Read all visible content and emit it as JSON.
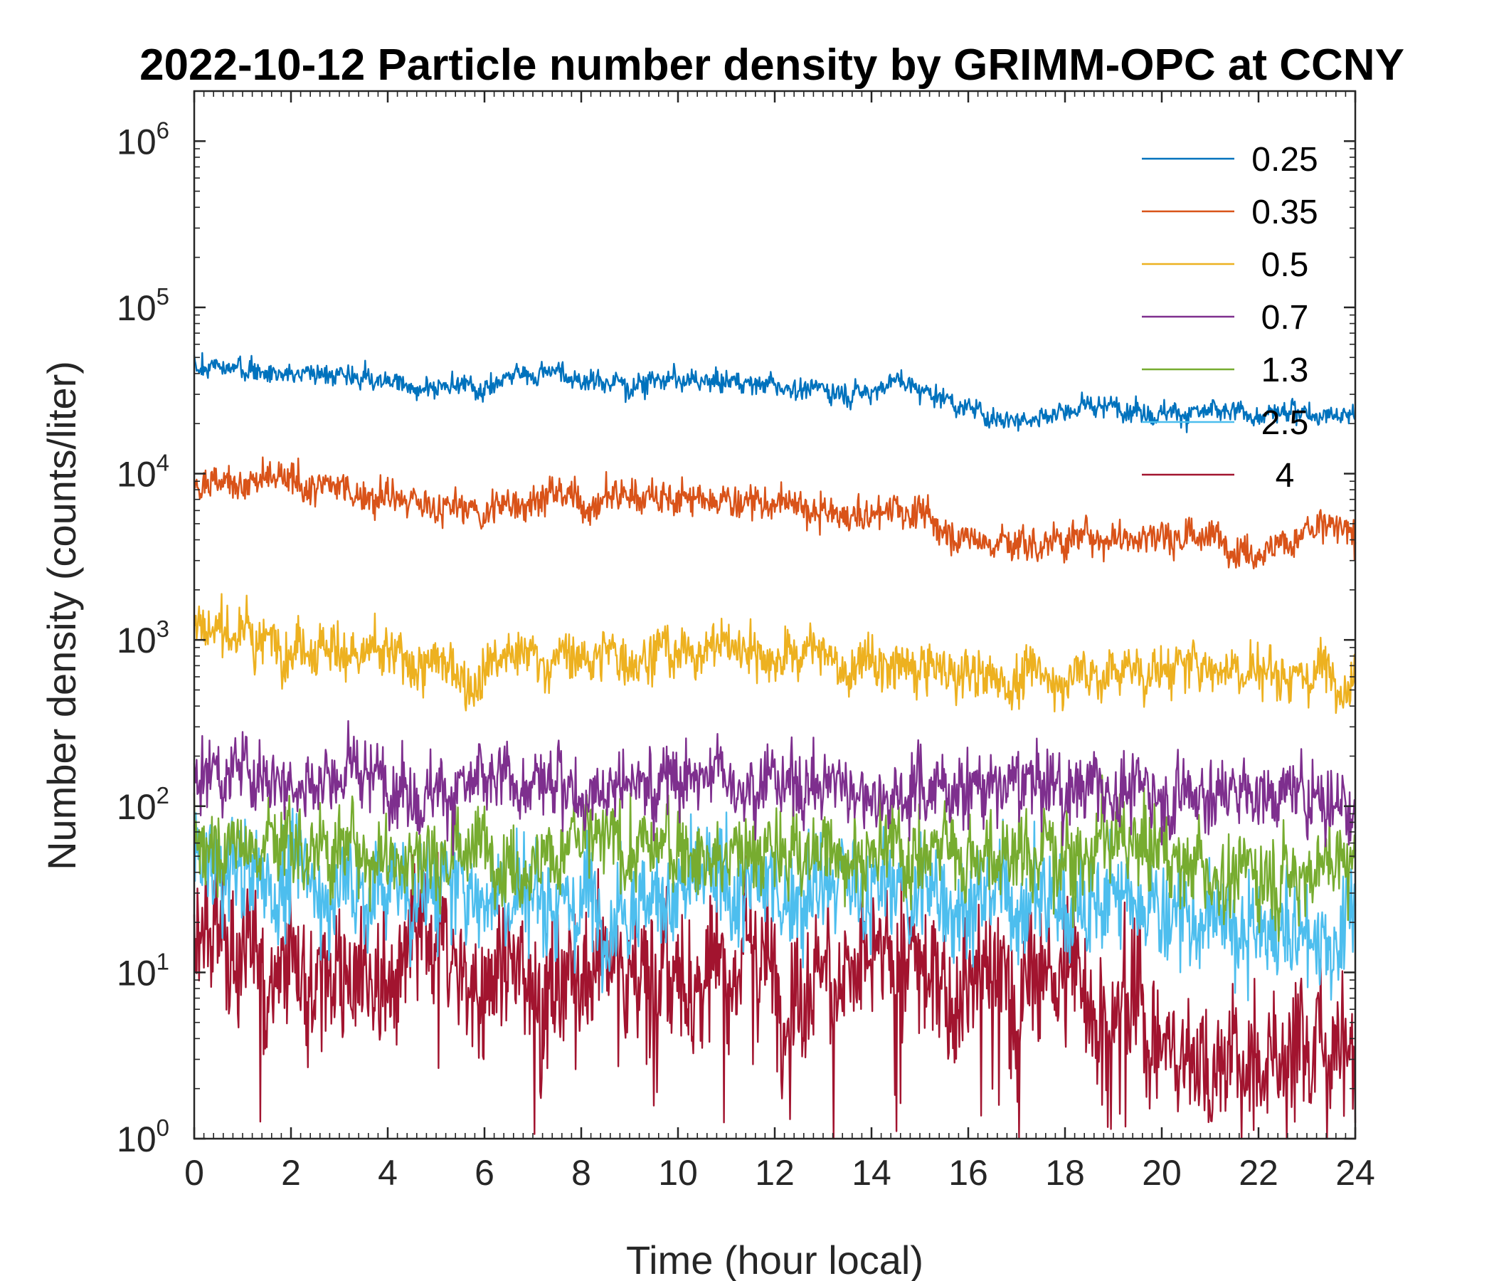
{
  "chart_data": {
    "type": "line",
    "title": "2022-10-12 Particle number density by GRIMM-OPC at CCNY",
    "xlabel": "Time (hour local)",
    "ylabel": "Number density (counts/liter)",
    "xlim": [
      0,
      24
    ],
    "ylim": [
      1,
      2000000
    ],
    "yscale": "log",
    "x_ticks": [
      "0",
      "2",
      "4",
      "6",
      "8",
      "10",
      "12",
      "14",
      "16",
      "18",
      "20",
      "22",
      "24"
    ],
    "y_ticks": [
      {
        "base": "10",
        "exp": "0"
      },
      {
        "base": "10",
        "exp": "1"
      },
      {
        "base": "10",
        "exp": "2"
      },
      {
        "base": "10",
        "exp": "3"
      },
      {
        "base": "10",
        "exp": "4"
      },
      {
        "base": "10",
        "exp": "5"
      },
      {
        "base": "10",
        "exp": "6"
      }
    ],
    "legend_position": "top-right",
    "series": [
      {
        "name": "0.25",
        "color": "#0072BD",
        "noise": 0.03,
        "x": [
          0,
          0.1,
          1,
          2,
          3,
          4,
          4.5,
          5,
          5.5,
          6,
          6.5,
          7,
          7.4,
          8,
          8.5,
          9,
          9.5,
          10,
          11,
          11.5,
          12,
          13,
          13.5,
          14,
          14.5,
          15,
          15.5,
          16,
          16.5,
          17,
          18,
          19,
          20,
          21,
          22,
          22.5,
          23,
          24
        ],
        "y": [
          52000,
          44000,
          42000,
          41000,
          39000,
          36000,
          33000,
          34000,
          33000,
          33000,
          38000,
          40000,
          44000,
          36000,
          37000,
          33000,
          39000,
          35000,
          36000,
          36000,
          34000,
          32000,
          31000,
          32000,
          37000,
          32000,
          29000,
          25000,
          22000,
          22000,
          24000,
          25000,
          24000,
          23000,
          22000,
          23000,
          24000,
          23000
        ]
      },
      {
        "name": "0.35",
        "color": "#D95319",
        "noise": 0.05,
        "x": [
          0,
          1,
          2,
          3,
          4,
          4.7,
          5,
          6,
          7,
          7.4,
          8,
          8.7,
          9.5,
          10,
          11,
          11.5,
          12,
          13,
          13.5,
          14,
          14.5,
          15,
          15.5,
          16,
          17,
          18,
          19,
          20,
          21,
          21.5,
          22,
          23,
          23.5,
          24
        ],
        "y": [
          9800,
          8800,
          8600,
          8000,
          7200,
          6100,
          6300,
          5800,
          7200,
          7800,
          6400,
          7500,
          7800,
          6800,
          7000,
          6800,
          6500,
          5700,
          5400,
          5500,
          6800,
          5400,
          4600,
          4200,
          3700,
          4100,
          4300,
          4400,
          4000,
          3700,
          3700,
          4200,
          4600,
          3900
        ]
      },
      {
        "name": "0.5",
        "color": "#EDB120",
        "noise": 0.07,
        "x": [
          0,
          1,
          2,
          3,
          4,
          4.6,
          5,
          5.7,
          6,
          7,
          8,
          9,
          9.5,
          10,
          11,
          11.5,
          12,
          12.5,
          13,
          13.5,
          14,
          15,
          16,
          17,
          18,
          19,
          20,
          21,
          22,
          23,
          23.5,
          24
        ],
        "y": [
          1200,
          1100,
          1000,
          900,
          750,
          680,
          700,
          600,
          720,
          800,
          770,
          850,
          900,
          820,
          980,
          900,
          800,
          780,
          900,
          620,
          700,
          640,
          600,
          580,
          620,
          650,
          650,
          700,
          650,
          650,
          720,
          580
        ]
      },
      {
        "name": "0.7",
        "color": "#7E2F8E",
        "noise": 0.1,
        "x": [
          0,
          2,
          4,
          6,
          8,
          10,
          11,
          12,
          14,
          16,
          18,
          20,
          22,
          24
        ],
        "y": [
          180,
          160,
          140,
          125,
          135,
          150,
          160,
          140,
          125,
          130,
          130,
          125,
          120,
          110
        ]
      },
      {
        "name": "1.3",
        "color": "#77AC30",
        "noise": 0.12,
        "x": [
          0,
          2,
          4,
          6,
          8,
          10,
          12,
          14,
          16,
          18,
          20,
          21,
          22,
          24
        ],
        "y": [
          65,
          60,
          55,
          52,
          55,
          55,
          52,
          52,
          55,
          55,
          58,
          40,
          40,
          48
        ]
      },
      {
        "name": "2.5",
        "color": "#4DBEEE",
        "noise": 0.15,
        "x": [
          0,
          2,
          4,
          6,
          8,
          10,
          12,
          14,
          16,
          18,
          20,
          21,
          22,
          24
        ],
        "y": [
          40,
          36,
          32,
          30,
          30,
          30,
          30,
          30,
          28,
          28,
          25,
          18,
          16,
          18
        ]
      },
      {
        "name": "4",
        "color": "#A2142F",
        "noise": 0.2,
        "x": [
          0,
          2,
          4,
          6,
          8,
          10,
          12,
          14,
          16,
          18,
          19,
          20,
          21,
          22,
          24
        ],
        "y": [
          14,
          12,
          11,
          10,
          10,
          11,
          11,
          10,
          10,
          9,
          8,
          4,
          3,
          3,
          3
        ]
      }
    ]
  }
}
